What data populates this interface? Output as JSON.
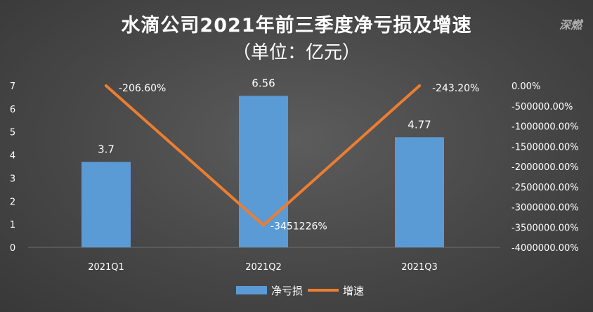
{
  "title": "水滴公司2021年前三季度净亏损及增速",
  "subtitle": "（单位：亿元）",
  "watermark": "深燃",
  "colors": {
    "bar": "#5b9bd5",
    "line": "#ed7d31",
    "text": "#ffffff",
    "background": "#474747"
  },
  "chart_data": {
    "type": "bar",
    "categories": [
      "2021Q1",
      "2021Q2",
      "2021Q3"
    ],
    "series": [
      {
        "name": "净亏损",
        "type": "bar",
        "axis": "left",
        "values": [
          3.7,
          6.56,
          4.77
        ],
        "labels": [
          "3.7",
          "6.56",
          "4.77"
        ]
      },
      {
        "name": "增速",
        "type": "line",
        "axis": "right",
        "values": [
          -206.6,
          -3451226,
          -243.2
        ],
        "labels": [
          "-206.60%",
          "-3451226%",
          "-243.20%"
        ]
      }
    ],
    "y_left": {
      "ylim": [
        0,
        7
      ],
      "ticks": [
        "0",
        "1",
        "2",
        "3",
        "4",
        "5",
        "6",
        "7"
      ]
    },
    "y_right": {
      "ylim": [
        -4000000,
        0
      ],
      "ticks": [
        "0.00%",
        "-500000.00%",
        "-1000000.00%",
        "-1500000.00%",
        "-2000000.00%",
        "-2500000.00%",
        "-3000000.00%",
        "-3500000.00%",
        "-4000000.00%"
      ]
    },
    "grid": false,
    "legend": "bottom"
  }
}
